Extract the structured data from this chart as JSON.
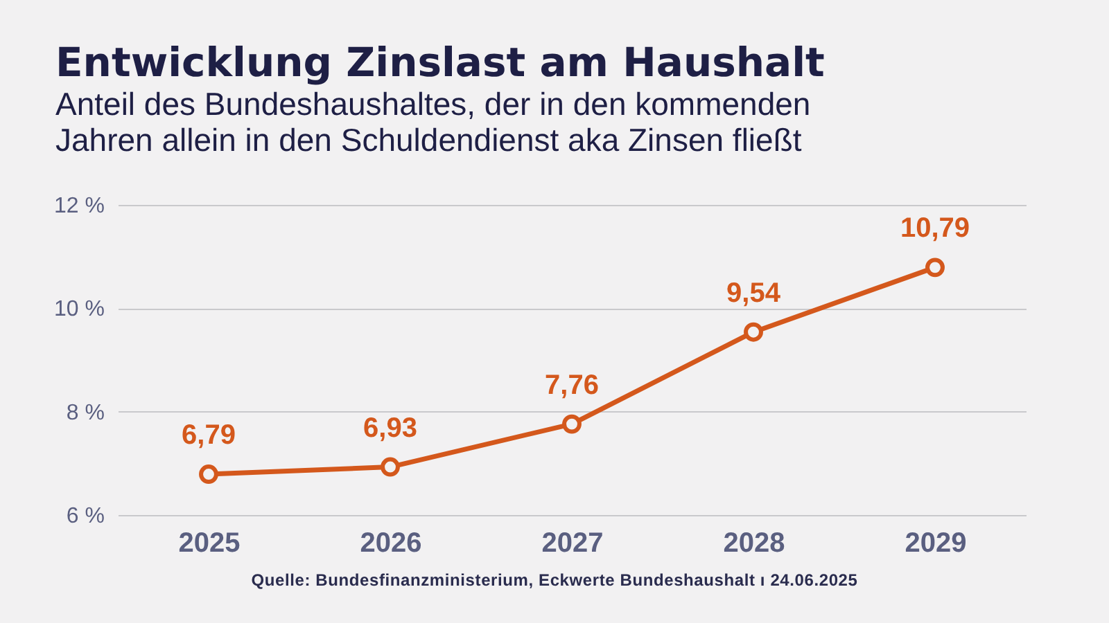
{
  "chart_data": {
    "type": "line",
    "title": "Entwicklung Zinslast am Haushalt",
    "subtitle": "Anteil des Bundeshaushaltes, der in den kommenden Jahren allein in den Schuldendienst aka Zinsen fließt",
    "categories": [
      "2025",
      "2026",
      "2027",
      "2028",
      "2029"
    ],
    "series": [
      {
        "color": "#d4581c",
        "values": [
          6.79,
          6.93,
          7.76,
          9.54,
          10.79
        ],
        "value_labels": [
          "6,79",
          "6,93",
          "7,76",
          "9,54",
          "10,79"
        ]
      }
    ],
    "ylim": [
      6,
      12
    ],
    "yticks": [
      {
        "value": 6,
        "label": "6 %"
      },
      {
        "value": 8,
        "label": "8 %"
      },
      {
        "value": 10,
        "label": "10 %"
      },
      {
        "value": 12,
        "label": "12 %"
      }
    ],
    "grid": "y",
    "marker": "circle",
    "line_style": "solid",
    "annotations": [
      "Quelle: Bundesfinanzministerium, Eckwerte Bundeshaushalt ı 24.06.2025"
    ]
  }
}
